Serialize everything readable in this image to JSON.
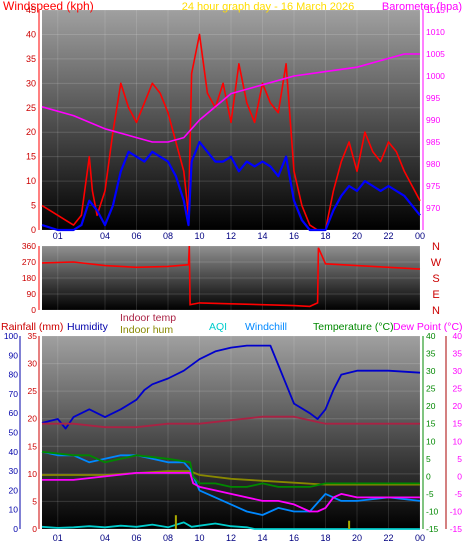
{
  "header": {
    "left_title": "Windspeed (kph)",
    "center_title": "24 hour graph day - 16 March 2026",
    "right_title": "Barometer (hpa)"
  },
  "legend2": {
    "rainfall": "Rainfall (mm)",
    "humidity": "Humidity",
    "indoor_temp": "Indoor temp",
    "indoor_hum": "Indoor hum",
    "aqi": "AQI",
    "windchill": "Windchill",
    "temperature": "Temperature (°C)",
    "dewpoint": "Dew Point (°C)"
  },
  "colors": {
    "windspeed": "#ff0000",
    "average_wind": "#0000ff",
    "barometer": "#ff00ff",
    "winddir": "#ff0000",
    "humidity": "#0000cc",
    "indoor_temp": "#aa2244",
    "indoor_hum": "#888800",
    "aqi": "#00cccc",
    "windchill": "#0088ff",
    "temperature": "#008800",
    "dewpoint": "#ff00ff",
    "rainfall": "#cc0000"
  },
  "chart_data": [
    {
      "id": "wind",
      "type": "line",
      "title": "24 hour graph day - 16 March 2026",
      "xlabel": "",
      "x_ticks": [
        "01",
        "04",
        "06",
        "08",
        "10",
        "12",
        "14",
        "16",
        "18",
        "20",
        "22",
        "00"
      ],
      "ylim_left": [
        0,
        45
      ],
      "yticks_left": [
        0,
        5,
        10,
        15,
        20,
        25,
        30,
        35,
        40,
        45
      ],
      "ylabel_left": "Windspeed (kph)",
      "ylim_right": [
        965,
        1015
      ],
      "yticks_right": [
        970,
        975,
        980,
        985,
        990,
        995,
        1000,
        1005,
        1010,
        1015
      ],
      "ylabel_right": "Barometer (hpa)",
      "series": [
        {
          "name": "Windspeed (kph)",
          "axis": "left",
          "x": [
            0,
            1,
            1.5,
            2,
            2.5,
            3,
            3.2,
            3.5,
            4,
            4.5,
            5,
            5.5,
            6,
            6.5,
            7,
            7.5,
            8,
            8.5,
            9,
            9.3,
            9.5,
            10,
            10.5,
            11,
            11.5,
            12,
            12.5,
            13,
            13.5,
            14,
            14.5,
            15,
            15.5,
            16,
            16.5,
            17,
            17.5,
            18,
            18.5,
            19,
            19.5,
            20,
            20.5,
            21,
            21.5,
            22,
            22.5,
            23,
            24
          ],
          "y": [
            5,
            3,
            2,
            1,
            3,
            15,
            8,
            3,
            8,
            20,
            30,
            25,
            22,
            26,
            30,
            28,
            24,
            18,
            12,
            3,
            32,
            40,
            28,
            25,
            30,
            22,
            34,
            26,
            22,
            30,
            26,
            24,
            34,
            12,
            5,
            1,
            0,
            0,
            8,
            14,
            18,
            12,
            20,
            16,
            14,
            18,
            16,
            12,
            6
          ]
        },
        {
          "name": "Average wind",
          "axis": "left",
          "x": [
            0,
            1,
            1.5,
            2,
            2.5,
            3,
            3.5,
            4,
            4.5,
            5,
            5.5,
            6,
            6.5,
            7,
            7.5,
            8,
            8.5,
            9,
            9.3,
            9.5,
            10,
            10.5,
            11,
            11.5,
            12,
            12.5,
            13,
            13.5,
            14,
            14.5,
            15,
            15.5,
            16,
            16.5,
            17,
            17.5,
            18,
            18.5,
            19,
            19.5,
            20,
            20.5,
            21,
            21.5,
            22,
            22.5,
            23,
            24
          ],
          "y": [
            1,
            0,
            0,
            0,
            1,
            6,
            4,
            1,
            5,
            12,
            16,
            15,
            14,
            16,
            15,
            14,
            11,
            6,
            1,
            14,
            18,
            16,
            14,
            14,
            15,
            12,
            14,
            13,
            14,
            13,
            11,
            15,
            6,
            2,
            0,
            0,
            0,
            4,
            7,
            9,
            8,
            10,
            9,
            8,
            9,
            8,
            7,
            3
          ]
        },
        {
          "name": "Barometer (hpa)",
          "axis": "right",
          "x": [
            0,
            2,
            4,
            6,
            7,
            8,
            9,
            10,
            11,
            12,
            14,
            16,
            18,
            20,
            22,
            23,
            24
          ],
          "y": [
            993,
            991,
            988,
            986,
            985,
            985,
            986,
            990,
            993,
            996,
            998,
            1000,
            1001,
            1002,
            1004,
            1005,
            1005
          ]
        }
      ]
    },
    {
      "id": "direction",
      "type": "line",
      "ylim": [
        0,
        360
      ],
      "yticks": [
        0,
        90,
        180,
        270,
        360
      ],
      "compass_labels": [
        "N",
        "W",
        "S",
        "E",
        "N"
      ],
      "series": [
        {
          "name": "Wind direction",
          "x": [
            0,
            2,
            4,
            6,
            8,
            9.3,
            9.35,
            9.4,
            10,
            12,
            14,
            16,
            17,
            17.5,
            17.55,
            18,
            20,
            22,
            24
          ],
          "y": [
            265,
            270,
            250,
            240,
            245,
            255,
            360,
            30,
            40,
            35,
            30,
            25,
            20,
            40,
            350,
            260,
            250,
            240,
            230
          ]
        }
      ]
    },
    {
      "id": "climate",
      "type": "line",
      "x_ticks": [
        "01",
        "04",
        "06",
        "08",
        "10",
        "12",
        "14",
        "16",
        "18",
        "20",
        "22",
        "00"
      ],
      "ylim_rain": [
        0,
        35
      ],
      "yticks_rain": [
        0,
        5,
        10,
        15,
        20,
        25,
        30,
        35
      ],
      "ylim_hum": [
        0,
        100
      ],
      "yticks_hum": [
        0,
        10,
        20,
        30,
        40,
        50,
        60,
        70,
        80,
        90,
        100
      ],
      "ylim_temp_right": [
        -15,
        40
      ],
      "yticks_temp_right": [
        -15,
        -10,
        -5,
        0,
        5,
        10,
        15,
        20,
        25,
        30,
        35,
        40
      ],
      "ylim_temp_far_right": [
        -15,
        40
      ],
      "yticks_temp_far_right": [
        -15,
        -10,
        -5,
        0,
        5,
        10,
        15,
        20,
        25,
        30,
        35,
        40
      ],
      "series": [
        {
          "name": "Humidity",
          "axis": "hum",
          "x": [
            0,
            1,
            1.5,
            2,
            3,
            4,
            5,
            6,
            6.5,
            7,
            8,
            9,
            10,
            11,
            12,
            13,
            14,
            14.5,
            15,
            16,
            17,
            17.5,
            18,
            18.5,
            19,
            20,
            22,
            24
          ],
          "y": [
            55,
            57,
            52,
            58,
            62,
            58,
            62,
            67,
            72,
            75,
            78,
            82,
            88,
            92,
            94,
            95,
            95,
            95,
            85,
            65,
            60,
            57,
            62,
            72,
            80,
            82,
            82,
            81
          ]
        },
        {
          "name": "Indoor temp",
          "axis": "temp",
          "x": [
            0,
            2,
            4,
            6,
            8,
            10,
            12,
            14,
            16,
            18,
            20,
            22,
            24
          ],
          "y": [
            15,
            15,
            14,
            14,
            15,
            15,
            16,
            17,
            17,
            15,
            15,
            15,
            15
          ]
        },
        {
          "name": "Indoor hum",
          "axis": "hum",
          "x": [
            0,
            2,
            4,
            6,
            8,
            9.4,
            10,
            12,
            14,
            16,
            18,
            20,
            22,
            24
          ],
          "y": [
            28,
            28,
            28,
            29,
            30,
            30,
            28,
            26,
            25,
            24,
            23,
            23,
            23,
            23
          ]
        },
        {
          "name": "AQI",
          "axis": "rain",
          "x": [
            0,
            1,
            2,
            3,
            4,
            5,
            6,
            7,
            8,
            9,
            9.5,
            10,
            11,
            12,
            13,
            13.5,
            24
          ],
          "y": [
            0.4,
            0.2,
            0.3,
            0.5,
            0.3,
            0.6,
            0.4,
            0.8,
            0.3,
            1.2,
            0.4,
            0.6,
            1.0,
            0.5,
            0.3,
            0,
            0
          ]
        },
        {
          "name": "Windchill",
          "axis": "temp",
          "x": [
            0,
            1,
            2,
            3,
            4,
            5,
            6,
            7,
            8,
            9,
            9.4,
            10,
            11,
            12,
            13,
            14,
            15,
            16,
            17,
            18,
            19,
            20,
            22,
            24
          ],
          "y": [
            7,
            6,
            6,
            4,
            5,
            6,
            6,
            5,
            4,
            4,
            2,
            -4,
            -6,
            -8,
            -10,
            -11,
            -9,
            -10,
            -10,
            -5,
            -7,
            -7,
            -6,
            -7
          ]
        },
        {
          "name": "Temperature (°C)",
          "axis": "temp",
          "x": [
            0,
            2,
            3,
            4,
            6,
            8,
            9.4,
            9.6,
            10,
            11,
            12,
            13,
            14,
            15,
            16,
            17,
            18,
            19,
            20,
            22,
            24
          ],
          "y": [
            7,
            6,
            6,
            4,
            6,
            5,
            4,
            0,
            -2,
            -2,
            -3,
            -3,
            -2,
            -3,
            -3,
            -3,
            -2,
            -2,
            -2,
            -2,
            -2
          ]
        },
        {
          "name": "Dew Point (°C)",
          "axis": "temp",
          "x": [
            0,
            2,
            4,
            6,
            8,
            9.4,
            9.6,
            10,
            11,
            12,
            13,
            14,
            15,
            16,
            17,
            17.5,
            18,
            18.5,
            19,
            20,
            22,
            24
          ],
          "y": [
            -1,
            -1,
            0,
            1,
            1,
            1,
            -2,
            -3,
            -4,
            -5,
            -6,
            -7,
            -7,
            -8,
            -10,
            -10,
            -9,
            -6,
            -5,
            -6,
            -6,
            -6
          ]
        },
        {
          "name": "Rainfall (mm)",
          "axis": "rain",
          "type": "bar",
          "x": [
            8.5,
            19.5
          ],
          "y": [
            2.5,
            1.5
          ]
        }
      ]
    }
  ]
}
